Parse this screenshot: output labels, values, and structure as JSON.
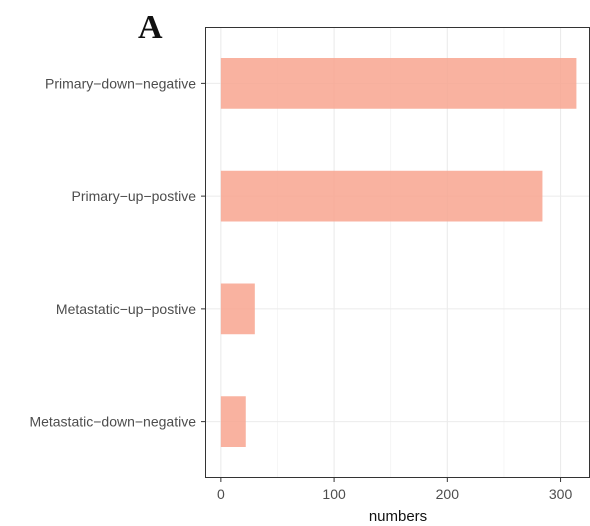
{
  "panel_label": "A",
  "chart_data": {
    "type": "bar",
    "orientation": "horizontal",
    "categories": [
      "Primary−down−negative",
      "Primary−up−postive",
      "Metastatic−up−postive",
      "Metastatic−down−negative"
    ],
    "values": [
      314,
      284,
      30,
      22
    ],
    "xlabel": "numbers",
    "ylabel": "",
    "xlim": [
      -14,
      326
    ],
    "xticks": [
      0,
      100,
      200,
      300
    ],
    "grid": true,
    "bar_color": "#f8a58f"
  }
}
